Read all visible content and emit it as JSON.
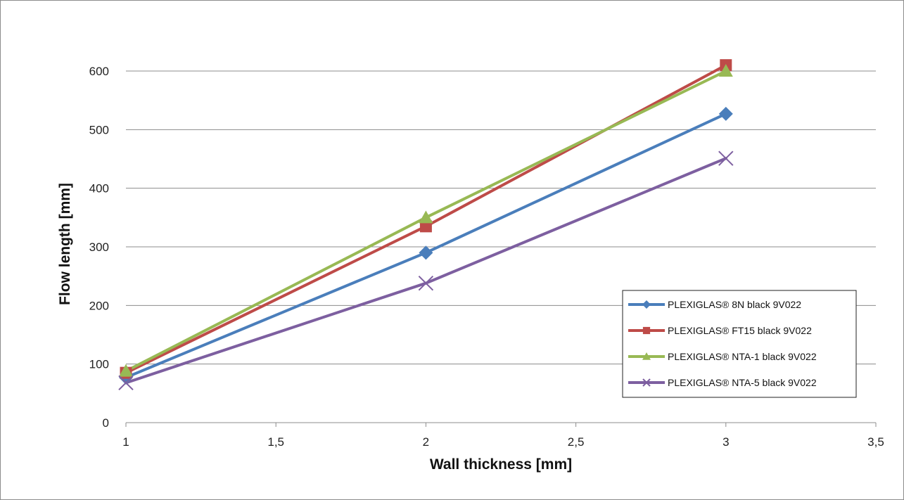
{
  "chart_data": {
    "type": "line",
    "title": "",
    "xlabel": "Wall thickness [mm]",
    "ylabel": "Flow length [mm]",
    "xlim": [
      1,
      3.5
    ],
    "ylim": [
      0,
      600
    ],
    "x_ticks": [
      1,
      1.5,
      2,
      2.5,
      3,
      3.5
    ],
    "x_tick_labels": [
      "1",
      "1,5",
      "2",
      "2,5",
      "3",
      "3,5"
    ],
    "y_ticks": [
      0,
      100,
      200,
      300,
      400,
      500,
      600
    ],
    "y_tick_labels": [
      "0",
      "100",
      "200",
      "300",
      "400",
      "500",
      "600"
    ],
    "grid": true,
    "legend_position": "bottom-right",
    "series": [
      {
        "name": "PLEXIGLAS® 8N black 9V022",
        "color": "#4a7ebb",
        "marker": "diamond",
        "x": [
          1,
          2,
          3
        ],
        "y": [
          77,
          290,
          527
        ]
      },
      {
        "name": "PLEXIGLAS® FT15 black 9V022",
        "color": "#be4b48",
        "marker": "square",
        "x": [
          1,
          2,
          3
        ],
        "y": [
          85,
          335,
          610
        ]
      },
      {
        "name": "PLEXIGLAS® NTA-1 black 9V022",
        "color": "#98b954",
        "marker": "triangle",
        "x": [
          1,
          2,
          3
        ],
        "y": [
          88,
          350,
          600
        ]
      },
      {
        "name": "PLEXIGLAS® NTA-5 black 9V022",
        "color": "#7d5fa0",
        "marker": "x",
        "x": [
          1,
          2,
          3
        ],
        "y": [
          68,
          238,
          451
        ]
      }
    ]
  }
}
